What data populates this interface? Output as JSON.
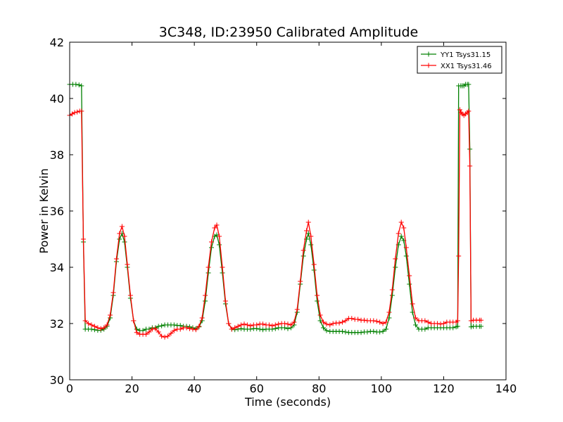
{
  "chart_data": {
    "type": "line",
    "title": "3C348, ID:23950 Calibrated Amplitude",
    "xlabel": "Time (seconds)",
    "ylabel": "Power in Kelvin",
    "xlim": [
      0,
      140
    ],
    "ylim": [
      30,
      42
    ],
    "xticks": [
      0,
      20,
      40,
      60,
      80,
      100,
      120,
      140
    ],
    "yticks": [
      30,
      32,
      34,
      36,
      38,
      40,
      42
    ],
    "grid": false,
    "legend_position": "top-right",
    "series": [
      {
        "name": "YY1 Tsys31.15",
        "color": "#008000",
        "marker": "+",
        "points": [
          [
            0,
            40.5
          ],
          [
            1,
            40.5
          ],
          [
            2,
            40.5
          ],
          [
            3,
            40.48
          ],
          [
            3.8,
            40.45
          ],
          [
            4.4,
            34.9
          ],
          [
            5,
            31.8
          ],
          [
            6,
            31.8
          ],
          [
            7,
            31.8
          ],
          [
            8,
            31.78
          ],
          [
            9,
            31.76
          ],
          [
            10,
            31.76
          ],
          [
            11,
            31.8
          ],
          [
            12,
            31.9
          ],
          [
            13,
            32.2
          ],
          [
            14,
            33.0
          ],
          [
            15,
            34.2
          ],
          [
            16,
            35.0
          ],
          [
            16.8,
            35.2
          ],
          [
            17.6,
            34.9
          ],
          [
            18.5,
            34.0
          ],
          [
            19.5,
            32.9
          ],
          [
            20.5,
            32.1
          ],
          [
            21.5,
            31.8
          ],
          [
            22.5,
            31.75
          ],
          [
            23.5,
            31.75
          ],
          [
            24.5,
            31.8
          ],
          [
            25.5,
            31.8
          ],
          [
            26.5,
            31.85
          ],
          [
            27.5,
            31.85
          ],
          [
            28.5,
            31.9
          ],
          [
            29.5,
            31.92
          ],
          [
            30.5,
            31.95
          ],
          [
            31.5,
            31.95
          ],
          [
            32.5,
            31.95
          ],
          [
            33.5,
            31.95
          ],
          [
            34.5,
            31.93
          ],
          [
            35.5,
            31.93
          ],
          [
            36.5,
            31.9
          ],
          [
            37.5,
            31.9
          ],
          [
            38.5,
            31.88
          ],
          [
            39.5,
            31.85
          ],
          [
            40.5,
            31.82
          ],
          [
            41.5,
            31.88
          ],
          [
            42.5,
            32.1
          ],
          [
            43.5,
            32.8
          ],
          [
            44.5,
            33.8
          ],
          [
            45.5,
            34.7
          ],
          [
            46.5,
            35.1
          ],
          [
            47.2,
            35.15
          ],
          [
            48,
            34.8
          ],
          [
            49,
            33.8
          ],
          [
            50,
            32.7
          ],
          [
            51,
            32.0
          ],
          [
            52,
            31.8
          ],
          [
            53,
            31.78
          ],
          [
            54,
            31.8
          ],
          [
            55,
            31.82
          ],
          [
            56,
            31.8
          ],
          [
            57,
            31.8
          ],
          [
            58,
            31.8
          ],
          [
            59,
            31.82
          ],
          [
            60,
            31.82
          ],
          [
            61,
            31.8
          ],
          [
            62,
            31.78
          ],
          [
            63,
            31.8
          ],
          [
            64,
            31.8
          ],
          [
            65,
            31.8
          ],
          [
            66,
            31.82
          ],
          [
            67,
            31.85
          ],
          [
            68,
            31.85
          ],
          [
            69,
            31.85
          ],
          [
            70,
            31.82
          ],
          [
            71,
            31.85
          ],
          [
            72,
            31.95
          ],
          [
            73,
            32.4
          ],
          [
            74,
            33.4
          ],
          [
            75,
            34.4
          ],
          [
            76,
            35.0
          ],
          [
            76.6,
            35.2
          ],
          [
            77.4,
            34.8
          ],
          [
            78.4,
            33.9
          ],
          [
            79.4,
            32.8
          ],
          [
            80.4,
            32.1
          ],
          [
            81.4,
            31.85
          ],
          [
            82.4,
            31.75
          ],
          [
            83.5,
            31.72
          ],
          [
            84.5,
            31.72
          ],
          [
            85.5,
            31.72
          ],
          [
            86.5,
            31.72
          ],
          [
            87.5,
            31.72
          ],
          [
            88.5,
            31.7
          ],
          [
            89.5,
            31.68
          ],
          [
            90.5,
            31.68
          ],
          [
            91.5,
            31.68
          ],
          [
            92.5,
            31.68
          ],
          [
            93.5,
            31.68
          ],
          [
            94.5,
            31.7
          ],
          [
            95.5,
            31.7
          ],
          [
            96.5,
            31.72
          ],
          [
            97.5,
            31.72
          ],
          [
            98.5,
            31.7
          ],
          [
            99.5,
            31.7
          ],
          [
            100.5,
            31.72
          ],
          [
            101.5,
            31.8
          ],
          [
            102.5,
            32.2
          ],
          [
            103.5,
            33.0
          ],
          [
            104.5,
            34.0
          ],
          [
            105.5,
            34.8
          ],
          [
            106.4,
            35.1
          ],
          [
            107.2,
            34.95
          ],
          [
            108,
            34.4
          ],
          [
            109,
            33.4
          ],
          [
            110,
            32.4
          ],
          [
            111,
            31.95
          ],
          [
            112,
            31.8
          ],
          [
            113,
            31.8
          ],
          [
            114,
            31.8
          ],
          [
            115,
            31.85
          ],
          [
            116,
            31.85
          ],
          [
            117,
            31.85
          ],
          [
            118,
            31.85
          ],
          [
            119,
            31.85
          ],
          [
            120,
            31.85
          ],
          [
            121,
            31.85
          ],
          [
            122,
            31.85
          ],
          [
            123,
            31.85
          ],
          [
            124,
            31.88
          ],
          [
            124.5,
            31.9
          ],
          [
            124.8,
            40.45
          ],
          [
            125.5,
            40.45
          ],
          [
            126,
            40.45
          ],
          [
            126.5,
            40.45
          ],
          [
            127,
            40.5
          ],
          [
            127.6,
            40.5
          ],
          [
            128,
            40.5
          ],
          [
            128.4,
            38.2
          ],
          [
            128.8,
            31.88
          ],
          [
            129.5,
            31.9
          ],
          [
            130.5,
            31.9
          ],
          [
            131.5,
            31.9
          ],
          [
            132,
            31.9
          ]
        ]
      },
      {
        "name": "XX1 Tsys31.46",
        "color": "#ff0000",
        "marker": "+",
        "points": [
          [
            0,
            39.4
          ],
          [
            0.8,
            39.45
          ],
          [
            1.6,
            39.5
          ],
          [
            2.4,
            39.52
          ],
          [
            3.2,
            39.55
          ],
          [
            3.8,
            39.55
          ],
          [
            4.4,
            35.0
          ],
          [
            5,
            32.1
          ],
          [
            6,
            32.0
          ],
          [
            7,
            31.95
          ],
          [
            8,
            31.9
          ],
          [
            9,
            31.85
          ],
          [
            10,
            31.82
          ],
          [
            11,
            31.85
          ],
          [
            12,
            31.95
          ],
          [
            13,
            32.3
          ],
          [
            14,
            33.1
          ],
          [
            15,
            34.3
          ],
          [
            16,
            35.2
          ],
          [
            16.8,
            35.45
          ],
          [
            17.6,
            35.1
          ],
          [
            18.5,
            34.1
          ],
          [
            19.5,
            33.0
          ],
          [
            20.5,
            32.1
          ],
          [
            21.5,
            31.68
          ],
          [
            22.5,
            31.62
          ],
          [
            23.5,
            31.62
          ],
          [
            24.5,
            31.62
          ],
          [
            25.5,
            31.7
          ],
          [
            26.5,
            31.8
          ],
          [
            27.5,
            31.82
          ],
          [
            28.5,
            31.7
          ],
          [
            29.5,
            31.55
          ],
          [
            30.5,
            31.52
          ],
          [
            31.5,
            31.55
          ],
          [
            32.5,
            31.65
          ],
          [
            33.5,
            31.75
          ],
          [
            34.5,
            31.8
          ],
          [
            35.5,
            31.8
          ],
          [
            36.5,
            31.85
          ],
          [
            37.5,
            31.85
          ],
          [
            38.5,
            31.82
          ],
          [
            39.5,
            31.8
          ],
          [
            40.5,
            31.78
          ],
          [
            41.5,
            31.9
          ],
          [
            42.5,
            32.2
          ],
          [
            43.5,
            33.0
          ],
          [
            44.5,
            34.0
          ],
          [
            45.5,
            34.9
          ],
          [
            46.5,
            35.4
          ],
          [
            47.2,
            35.5
          ],
          [
            48,
            35.1
          ],
          [
            49,
            34.0
          ],
          [
            50,
            32.8
          ],
          [
            51,
            32.0
          ],
          [
            52,
            31.8
          ],
          [
            53,
            31.85
          ],
          [
            54,
            31.9
          ],
          [
            55,
            31.95
          ],
          [
            56,
            31.98
          ],
          [
            57,
            31.95
          ],
          [
            58,
            31.92
          ],
          [
            59,
            31.95
          ],
          [
            60,
            31.95
          ],
          [
            61,
            31.98
          ],
          [
            62,
            31.98
          ],
          [
            63,
            31.95
          ],
          [
            64,
            31.95
          ],
          [
            65,
            31.92
          ],
          [
            66,
            31.95
          ],
          [
            67,
            31.98
          ],
          [
            68,
            32.0
          ],
          [
            69,
            32.0
          ],
          [
            70,
            31.98
          ],
          [
            71,
            31.95
          ],
          [
            72,
            32.05
          ],
          [
            73,
            32.5
          ],
          [
            74,
            33.5
          ],
          [
            75,
            34.6
          ],
          [
            76,
            35.3
          ],
          [
            76.6,
            35.6
          ],
          [
            77.4,
            35.1
          ],
          [
            78.4,
            34.1
          ],
          [
            79.4,
            33.0
          ],
          [
            80.4,
            32.3
          ],
          [
            81.4,
            32.05
          ],
          [
            82.4,
            31.98
          ],
          [
            83.5,
            31.95
          ],
          [
            84.5,
            32.0
          ],
          [
            85.5,
            32.02
          ],
          [
            86.5,
            32.02
          ],
          [
            87.5,
            32.05
          ],
          [
            88.5,
            32.1
          ],
          [
            89.5,
            32.18
          ],
          [
            90.5,
            32.18
          ],
          [
            91.5,
            32.15
          ],
          [
            92.5,
            32.15
          ],
          [
            93.5,
            32.12
          ],
          [
            94.5,
            32.12
          ],
          [
            95.5,
            32.1
          ],
          [
            96.5,
            32.1
          ],
          [
            97.5,
            32.1
          ],
          [
            98.5,
            32.08
          ],
          [
            99.5,
            32.05
          ],
          [
            100.5,
            32.0
          ],
          [
            101.5,
            32.05
          ],
          [
            102.5,
            32.4
          ],
          [
            103.5,
            33.2
          ],
          [
            104.5,
            34.3
          ],
          [
            105.5,
            35.2
          ],
          [
            106.4,
            35.6
          ],
          [
            107.2,
            35.4
          ],
          [
            108,
            34.7
          ],
          [
            109,
            33.7
          ],
          [
            110,
            32.7
          ],
          [
            111,
            32.2
          ],
          [
            112,
            32.1
          ],
          [
            113,
            32.1
          ],
          [
            114,
            32.1
          ],
          [
            115,
            32.05
          ],
          [
            116,
            32.0
          ],
          [
            117,
            32.0
          ],
          [
            118,
            32.0
          ],
          [
            119,
            31.98
          ],
          [
            120,
            32.0
          ],
          [
            121,
            32.05
          ],
          [
            122,
            32.05
          ],
          [
            123,
            32.05
          ],
          [
            124,
            32.05
          ],
          [
            124.5,
            32.1
          ],
          [
            124.8,
            34.4
          ],
          [
            125.2,
            39.6
          ],
          [
            125.6,
            39.5
          ],
          [
            126,
            39.45
          ],
          [
            126.5,
            39.4
          ],
          [
            127,
            39.45
          ],
          [
            127.6,
            39.5
          ],
          [
            128,
            39.55
          ],
          [
            128.4,
            37.6
          ],
          [
            128.8,
            32.1
          ],
          [
            129.5,
            32.12
          ],
          [
            130.5,
            32.12
          ],
          [
            131.5,
            32.12
          ],
          [
            132,
            32.12
          ]
        ]
      }
    ]
  }
}
